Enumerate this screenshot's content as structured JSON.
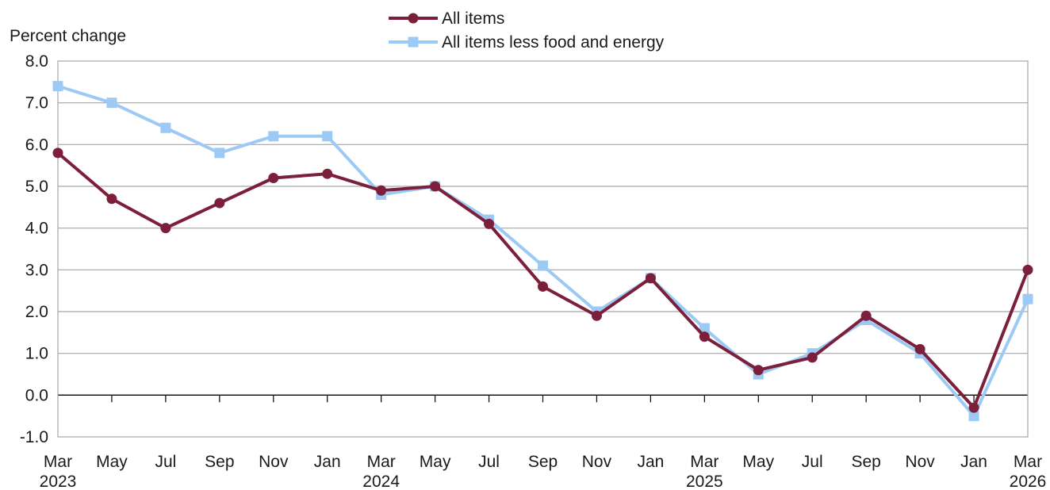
{
  "chart_data": {
    "type": "line",
    "ylabel": "Percent change",
    "xlabel": "",
    "title": "",
    "ylim": [
      -1.0,
      8.0
    ],
    "yticks": [
      "-1.0",
      "0.0",
      "1.0",
      "2.0",
      "3.0",
      "4.0",
      "5.0",
      "6.0",
      "7.0",
      "8.0"
    ],
    "grid": true,
    "legend_position": "top-center",
    "categories": [
      "Mar 2023",
      "May 2023",
      "Jul 2023",
      "Sep 2023",
      "Nov 2023",
      "Jan 2024",
      "Mar 2024",
      "May 2024",
      "Jul 2024",
      "Sep 2024",
      "Nov 2024",
      "Jan 2025",
      "Mar 2025",
      "May 2025",
      "Jul 2025",
      "Sep 2025",
      "Nov 2025",
      "Jan 2026",
      "Mar 2026"
    ],
    "tick_labels": [
      {
        "month": "Mar",
        "year": "2023"
      },
      {
        "month": "May",
        "year": ""
      },
      {
        "month": "Jul",
        "year": ""
      },
      {
        "month": "Sep",
        "year": ""
      },
      {
        "month": "Nov",
        "year": ""
      },
      {
        "month": "Jan",
        "year": ""
      },
      {
        "month": "Mar",
        "year": "2024"
      },
      {
        "month": "May",
        "year": ""
      },
      {
        "month": "Jul",
        "year": ""
      },
      {
        "month": "Sep",
        "year": ""
      },
      {
        "month": "Nov",
        "year": ""
      },
      {
        "month": "Jan",
        "year": ""
      },
      {
        "month": "Mar",
        "year": "2025"
      },
      {
        "month": "May",
        "year": ""
      },
      {
        "month": "Jul",
        "year": ""
      },
      {
        "month": "Sep",
        "year": ""
      },
      {
        "month": "Nov",
        "year": ""
      },
      {
        "month": "Jan",
        "year": ""
      },
      {
        "month": "Mar",
        "year": "2026"
      }
    ],
    "series": [
      {
        "name": "All items",
        "color": "#7b1f3a",
        "marker": "circle",
        "values": [
          5.8,
          4.7,
          4.0,
          4.6,
          5.2,
          5.3,
          4.9,
          5.0,
          4.1,
          2.6,
          1.9,
          2.8,
          1.4,
          0.6,
          0.9,
          1.9,
          1.1,
          -0.3,
          3.0
        ]
      },
      {
        "name": "All items less food and energy",
        "color": "#9ccaf5",
        "marker": "square",
        "values": [
          7.4,
          7.0,
          6.4,
          5.8,
          6.2,
          6.2,
          4.8,
          5.0,
          4.2,
          3.1,
          2.0,
          2.8,
          1.6,
          0.5,
          1.0,
          1.8,
          1.0,
          -0.5,
          2.3
        ]
      }
    ]
  }
}
